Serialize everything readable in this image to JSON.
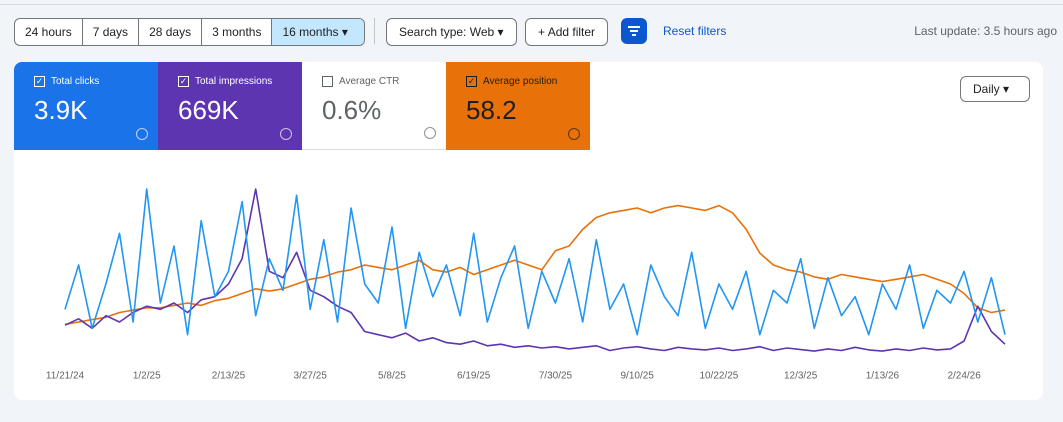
{
  "toolbar": {
    "ranges": [
      "24 hours",
      "7 days",
      "28 days",
      "3 months",
      "16 months"
    ],
    "selected_range": 4,
    "search_type": "Search type: Web",
    "add_filter": "Add filter",
    "reset": "Reset filters",
    "last_update": "Last update: 3.5 hours ago"
  },
  "metrics": [
    {
      "label": "Total clicks",
      "value": "3.9K",
      "checked": true,
      "color": "#1a73e8"
    },
    {
      "label": "Total impressions",
      "value": "669K",
      "checked": true,
      "color": "#5e35b1"
    },
    {
      "label": "Average CTR",
      "value": "0.6%",
      "checked": false,
      "color": "#ffffff"
    },
    {
      "label": "Average position",
      "value": "58.2",
      "checked": true,
      "color": "#e8710a"
    }
  ],
  "granularity": "Daily",
  "chart_data": {
    "type": "line",
    "categories": [
      "11/21/24",
      null,
      null,
      null,
      null,
      null,
      "1/2/25",
      null,
      null,
      null,
      null,
      null,
      "2/13/25",
      null,
      null,
      null,
      null,
      null,
      "3/27/25",
      null,
      null,
      null,
      null,
      null,
      "5/8/25",
      null,
      null,
      null,
      null,
      null,
      "6/19/25",
      null,
      null,
      null,
      null,
      null,
      "7/30/25",
      null,
      null,
      null,
      null,
      null,
      "9/10/25",
      null,
      null,
      null,
      null,
      null,
      "10/22/25",
      null,
      null,
      null,
      null,
      null,
      "12/3/25",
      null,
      null,
      null,
      null,
      null,
      "1/13/26",
      null,
      null,
      null,
      null,
      null,
      "2/24/26",
      null,
      null,
      null
    ],
    "series": [
      {
        "name": "Average position",
        "color": "#e8710a",
        "ylim": [
          100,
          20
        ],
        "values": [
          85,
          84,
          83,
          82,
          80,
          79,
          78,
          78,
          77,
          76,
          77,
          75,
          74,
          72,
          70,
          71,
          70,
          68,
          66,
          65,
          63,
          62,
          60,
          61,
          62,
          60,
          58,
          62,
          63,
          61,
          64,
          62,
          60,
          58,
          60,
          62,
          54,
          52,
          45,
          40,
          38,
          37,
          36,
          38,
          36,
          35,
          36,
          37,
          35,
          38,
          45,
          55,
          60,
          62,
          63,
          65,
          66,
          64,
          65,
          66,
          67,
          66,
          65,
          64,
          66,
          68,
          72,
          78,
          80,
          79
        ]
      },
      {
        "name": "Total impressions",
        "color": "#5e35b1",
        "ylim": [
          0,
          6000
        ],
        "values": [
          1100,
          1300,
          1000,
          1400,
          1200,
          1500,
          1700,
          1600,
          1800,
          1500,
          1900,
          2000,
          2400,
          3200,
          5400,
          2800,
          2600,
          3400,
          2200,
          2000,
          1700,
          1500,
          900,
          800,
          700,
          850,
          600,
          700,
          550,
          500,
          600,
          450,
          500,
          400,
          450,
          380,
          420,
          350,
          400,
          450,
          300,
          380,
          420,
          350,
          300,
          400,
          350,
          320,
          380,
          300,
          350,
          420,
          300,
          380,
          330,
          280,
          350,
          300,
          400,
          320,
          280,
          350,
          300,
          380,
          320,
          350,
          600,
          1700,
          900,
          500
        ]
      },
      {
        "name": "Total clicks",
        "color": "#2196f3",
        "ylim": [
          0,
          30
        ],
        "values": [
          8,
          15,
          5,
          12,
          20,
          6,
          27,
          9,
          18,
          4,
          22,
          10,
          14,
          25,
          7,
          16,
          11,
          26,
          8,
          19,
          6,
          24,
          12,
          9,
          21,
          5,
          17,
          10,
          15,
          7,
          20,
          6,
          13,
          18,
          5,
          14,
          9,
          16,
          6,
          19,
          8,
          12,
          4,
          15,
          10,
          7,
          17,
          5,
          12,
          8,
          14,
          4,
          11,
          9,
          16,
          5,
          13,
          7,
          10,
          4,
          12,
          8,
          15,
          5,
          11,
          9,
          14,
          6,
          13,
          4
        ]
      }
    ]
  }
}
